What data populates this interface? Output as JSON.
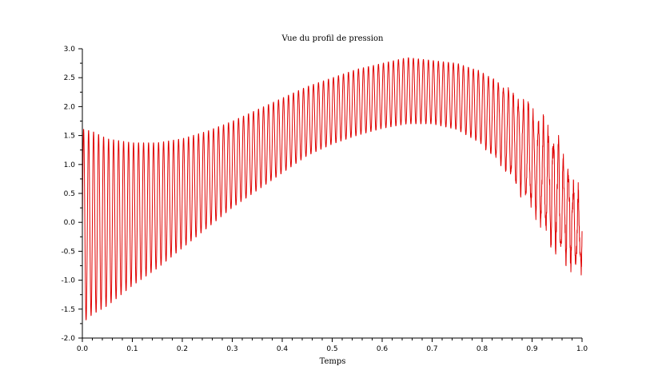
{
  "chart_data": {
    "type": "line",
    "title": "Vue du profil de pression",
    "xlabel": "Temps",
    "ylabel": "",
    "xlim": [
      0.0,
      1.0
    ],
    "ylim": [
      -2.0,
      3.0
    ],
    "grid": false,
    "x_ticks": [
      0.0,
      0.1,
      0.2,
      0.3,
      0.4,
      0.5,
      0.6,
      0.7,
      0.8,
      0.9,
      1.0
    ],
    "x_tick_labels": [
      "0.0",
      "0.1",
      "0.2",
      "0.3",
      "0.4",
      "0.5",
      "0.6",
      "0.7",
      "0.8",
      "0.9",
      "1.0"
    ],
    "y_ticks": [
      -2.0,
      -1.5,
      -1.0,
      -0.5,
      0.0,
      0.5,
      1.0,
      1.5,
      2.0,
      2.5,
      3.0
    ],
    "y_tick_labels": [
      "-2.0",
      "-1.5",
      "-1.0",
      "-0.5",
      "0.0",
      "0.5",
      "1.0",
      "1.5",
      "2.0",
      "2.5",
      "3.0"
    ],
    "series": [
      {
        "color": "#e00000",
        "oscillation_cycles": 100,
        "envelope": {
          "x": [
            0.0,
            0.02,
            0.05,
            0.1,
            0.15,
            0.2,
            0.25,
            0.3,
            0.35,
            0.4,
            0.45,
            0.5,
            0.55,
            0.6,
            0.65,
            0.7,
            0.75,
            0.8,
            0.85,
            0.9,
            0.95,
            1.0
          ],
          "upper": [
            1.62,
            1.58,
            1.45,
            1.38,
            1.38,
            1.45,
            1.58,
            1.75,
            1.95,
            2.15,
            2.35,
            2.5,
            2.65,
            2.75,
            2.85,
            2.8,
            2.75,
            2.6,
            2.3,
            1.9,
            1.35,
            0.25
          ],
          "lower": [
            -1.75,
            -1.6,
            -1.45,
            -1.1,
            -0.8,
            -0.45,
            -0.1,
            0.25,
            0.55,
            0.85,
            1.15,
            1.35,
            1.5,
            1.62,
            1.7,
            1.7,
            1.6,
            1.35,
            0.9,
            0.3,
            -0.4,
            -0.8
          ]
        }
      }
    ]
  }
}
